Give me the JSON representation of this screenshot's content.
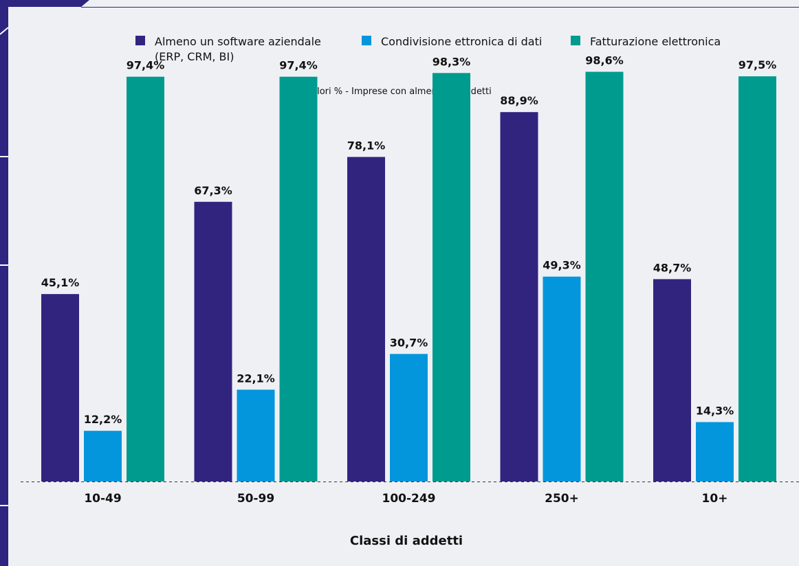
{
  "colors": {
    "background": "#eef0f4",
    "sidebar": "#2e2580",
    "series1": "#31247f",
    "series2": "#0396dc",
    "series3": "#009b8f",
    "text": "#111111",
    "baseline": "#333333"
  },
  "chart_data": {
    "type": "bar",
    "subtitle": "Valori % - Imprese con almeno 10 addetti",
    "xlabel": "Classi di addetti",
    "ylabel": "",
    "ylim": [
      0,
      100
    ],
    "grid": false,
    "legend_position": "top",
    "categories": [
      "10-49",
      "50-99",
      "100-249",
      "250+",
      "10+"
    ],
    "series": [
      {
        "name": "Almeno un software aziendale (ERP, CRM, BI)",
        "name_lines": [
          "Almeno un software aziendale",
          "(ERP, CRM, BI)"
        ],
        "values": [
          45.1,
          67.3,
          78.1,
          88.9,
          48.7
        ],
        "labels": [
          "45,1%",
          "67,3%",
          "78,1%",
          "88,9%",
          "48,7%"
        ]
      },
      {
        "name": "Condivisione ettronica di dati",
        "name_lines": [
          "Condivisione ettronica di dati"
        ],
        "values": [
          12.2,
          22.1,
          30.7,
          49.3,
          14.3
        ],
        "labels": [
          "12,2%",
          "22,1%",
          "30,7%",
          "49,3%",
          "14,3%"
        ]
      },
      {
        "name": "Fatturazione elettronica",
        "name_lines": [
          "Fatturazione elettronica"
        ],
        "values": [
          97.4,
          97.4,
          98.3,
          98.6,
          97.5
        ],
        "labels": [
          "97,4%",
          "97,4%",
          "98,3%",
          "98,6%",
          "97,5%"
        ]
      }
    ]
  }
}
